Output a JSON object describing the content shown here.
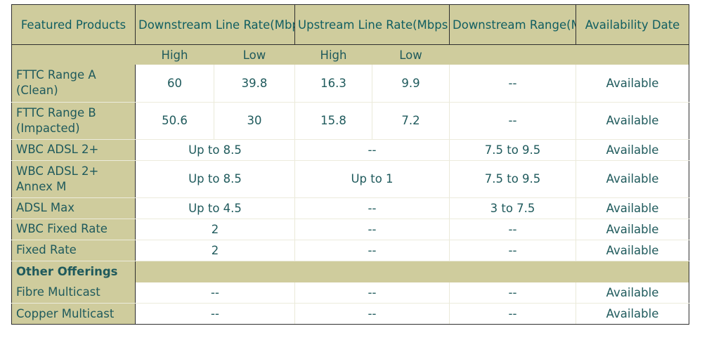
{
  "headers": {
    "featured_products": "Featured Products",
    "downstream_line_rate": "Downstream Line Rate(Mbps)",
    "upstream_line_rate": "Upstream Line Rate(Mbps)",
    "downstream_range": "Downstream Range(Mbps)",
    "availability_date": "Availability Date"
  },
  "subheaders": {
    "down_high": "High",
    "down_low": "Low",
    "up_high": "High",
    "up_low": "Low"
  },
  "rows": [
    {
      "product": "FTTC Range A (Clean)",
      "down_high": "60",
      "down_low": "39.8",
      "up_high": "16.3",
      "up_low": "9.9",
      "range": "--",
      "availability": "Available"
    },
    {
      "product": "FTTC Range B (Impacted)",
      "down_high": "50.6",
      "down_low": "30",
      "up_high": "15.8",
      "up_low": "7.2",
      "range": "--",
      "availability": "Available"
    },
    {
      "product": "WBC ADSL 2+",
      "downstream": "Up to 8.5",
      "upstream": "--",
      "range": "7.5 to 9.5",
      "availability": "Available"
    },
    {
      "product": "WBC ADSL 2+ Annex M",
      "downstream": "Up to 8.5",
      "upstream": "Up to 1",
      "range": "7.5 to 9.5",
      "availability": "Available"
    },
    {
      "product": "ADSL Max",
      "downstream": "Up to 4.5",
      "upstream": "--",
      "range": "3 to 7.5",
      "availability": "Available"
    },
    {
      "product": "WBC Fixed Rate",
      "downstream": "2",
      "upstream": "--",
      "range": "--",
      "availability": "Available"
    },
    {
      "product": "Fixed Rate",
      "downstream": "2",
      "upstream": "--",
      "range": "--",
      "availability": "Available"
    }
  ],
  "section_other": "Other Offerings",
  "other_rows": [
    {
      "product": "Fibre Multicast",
      "downstream": "--",
      "upstream": "--",
      "range": "--",
      "availability": "Available"
    },
    {
      "product": "Copper Multicast",
      "downstream": "--",
      "upstream": "--",
      "range": "--",
      "availability": "Available"
    }
  ]
}
